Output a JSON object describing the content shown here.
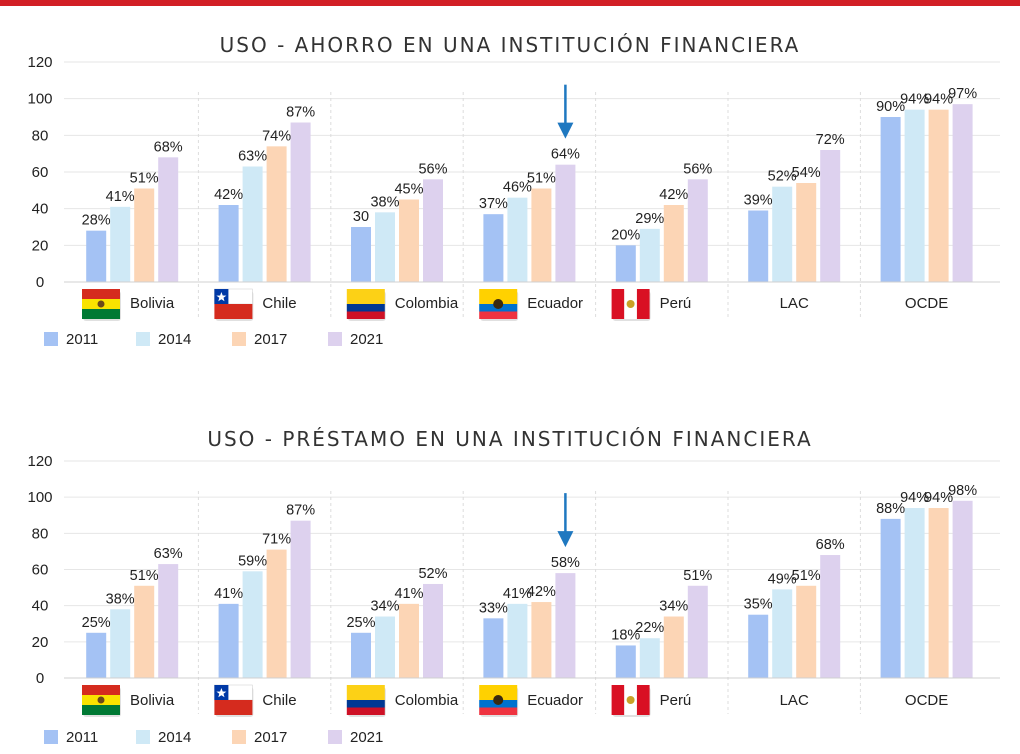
{
  "colors": {
    "accent_bar": "#d21f26",
    "s2011": "#a4c2f4",
    "s2014": "#cfe9f6",
    "s2017": "#fcd5b5",
    "s2021": "#ddd1ee",
    "arrow": "#1f78c0"
  },
  "chart_data": [
    {
      "type": "bar",
      "title": "USO - AHORRO EN UNA INSTITUCIÓN FINANCIERA",
      "categories": [
        "Bolivia",
        "Chile",
        "Colombia",
        "Ecuador",
        "Perú",
        "LAC",
        "OCDE"
      ],
      "category_icons": [
        "bolivia-flag-icon",
        "chile-flag-icon",
        "colombia-flag-icon",
        "ecuador-flag-icon",
        "peru-flag-icon",
        "",
        ""
      ],
      "series": [
        {
          "name": "2011",
          "values": [
            28,
            42,
            30,
            37,
            20,
            39,
            90
          ],
          "labels": [
            "28%",
            "42%",
            "30",
            "37%",
            "20%",
            "39%",
            "90%"
          ]
        },
        {
          "name": "2014",
          "values": [
            41,
            63,
            38,
            46,
            29,
            52,
            94
          ],
          "labels": [
            "41%",
            "63%",
            "38%",
            "46%",
            "29%",
            "52%",
            "94%"
          ]
        },
        {
          "name": "2017",
          "values": [
            51,
            74,
            45,
            51,
            42,
            54,
            94
          ],
          "labels": [
            "51%",
            "74%",
            "45%",
            "51%",
            "42%",
            "54%",
            "94%"
          ]
        },
        {
          "name": "2021",
          "values": [
            68,
            87,
            56,
            64,
            56,
            72,
            97
          ],
          "labels": [
            "68%",
            "87%",
            "56%",
            "64%",
            "56%",
            "72%",
            "97%"
          ]
        }
      ],
      "yticks": [
        "0",
        "20",
        "40",
        "60",
        "80",
        "100",
        "120"
      ],
      "ylim": [
        0,
        120
      ],
      "grid": true,
      "legend": "bottom-left",
      "annotation": {
        "type": "arrow",
        "category": "Ecuador",
        "series": "2021"
      }
    },
    {
      "type": "bar",
      "title": "USO - PRÉSTAMO EN UNA INSTITUCIÓN FINANCIERA",
      "categories": [
        "Bolivia",
        "Chile",
        "Colombia",
        "Ecuador",
        "Perú",
        "LAC",
        "OCDE"
      ],
      "category_icons": [
        "bolivia-flag-icon",
        "chile-flag-icon",
        "colombia-flag-icon",
        "ecuador-flag-icon",
        "peru-flag-icon",
        "",
        ""
      ],
      "series": [
        {
          "name": "2011",
          "values": [
            25,
            41,
            25,
            33,
            18,
            35,
            88
          ],
          "labels": [
            "25%",
            "41%",
            "25%",
            "33%",
            "18%",
            "35%",
            "88%"
          ]
        },
        {
          "name": "2014",
          "values": [
            38,
            59,
            34,
            41,
            22,
            49,
            94
          ],
          "labels": [
            "38%",
            "59%",
            "34%",
            "41%",
            "22%",
            "49%",
            "94%"
          ]
        },
        {
          "name": "2017",
          "values": [
            51,
            71,
            41,
            42,
            34,
            51,
            94
          ],
          "labels": [
            "51%",
            "71%",
            "41%",
            "42%",
            "34%",
            "51%",
            "94%"
          ]
        },
        {
          "name": "2021",
          "values": [
            63,
            87,
            52,
            58,
            51,
            68,
            98
          ],
          "labels": [
            "63%",
            "87%",
            "52%",
            "58%",
            "51%",
            "68%",
            "98%"
          ]
        }
      ],
      "yticks": [
        "0",
        "20",
        "40",
        "60",
        "80",
        "100",
        "120"
      ],
      "ylim": [
        0,
        120
      ],
      "grid": true,
      "legend": "bottom-left",
      "annotation": {
        "type": "arrow",
        "category": "Ecuador",
        "series": "2021"
      }
    }
  ]
}
